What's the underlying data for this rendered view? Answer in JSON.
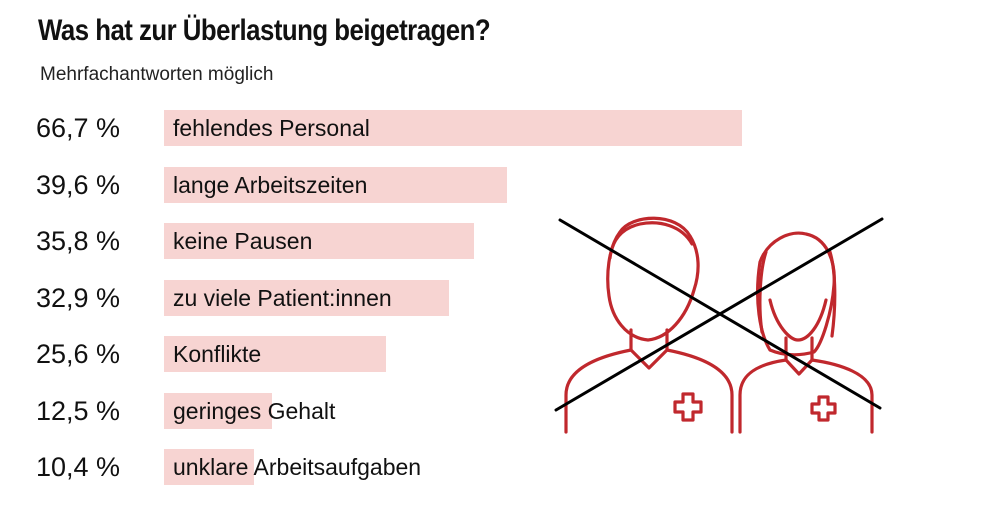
{
  "title": "Was hat zur Überlastung beigetragen?",
  "subtitle": "Mehrfachantworten möglich",
  "colors": {
    "bar": "#f7d4d2",
    "figure_stroke": "#c0282d",
    "cross_stroke": "#000000"
  },
  "chart_data": {
    "type": "bar",
    "orientation": "horizontal",
    "title": "Was hat zur Überlastung beigetragen?",
    "subtitle": "Mehrfachantworten möglich",
    "unit": "%",
    "xlim": [
      0,
      100
    ],
    "grid": false,
    "categories": [
      "fehlendes Personal",
      "lange Arbeitszeiten",
      "keine Pausen",
      "zu viele Patient:innen",
      "Konflikte",
      "geringes Gehalt",
      "unklare Arbeitsaufgaben"
    ],
    "values": [
      66.7,
      39.6,
      35.8,
      32.9,
      25.6,
      12.5,
      10.4
    ],
    "value_labels": [
      "66,7 %",
      "39,6 %",
      "35,8 %",
      "32,9 %",
      "25,6 %",
      "12,5 %",
      "10,4 %"
    ]
  },
  "illustration": {
    "figure_icons": [
      "male-health-worker-icon",
      "female-health-worker-icon",
      "medical-cross-icon"
    ],
    "overlay_icon": "crossed-out-x-icon"
  }
}
